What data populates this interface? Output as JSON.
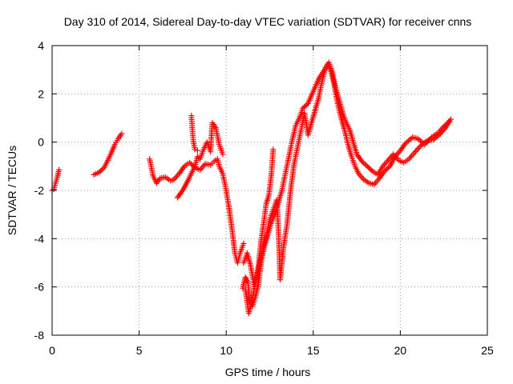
{
  "chart_data": {
    "type": "scatter",
    "title": "Day 310 of 2014, Sidereal Day-to-day VTEC variation (SDTVAR) for receiver cnns",
    "xlabel": "GPS time / hours",
    "ylabel": "SDTVAR / TECUs",
    "xlim": [
      0,
      25
    ],
    "ylim": [
      -8,
      4
    ],
    "xticks": [
      0,
      5,
      10,
      15,
      20,
      25
    ],
    "yticks": [
      -8,
      -6,
      -4,
      -2,
      0,
      2,
      4
    ],
    "xtick_labels": [
      "0",
      "5",
      "10",
      "15",
      "20",
      "25"
    ],
    "ytick_labels": [
      "-8",
      "-6",
      "-4",
      "-2",
      "0",
      "2",
      "4"
    ],
    "grid": true,
    "marker": "+",
    "color": "#ff0000",
    "series": [
      {
        "points": [
          [
            0.0,
            -2.0
          ],
          [
            0.1,
            -1.95
          ],
          [
            0.2,
            -1.7
          ],
          [
            0.3,
            -1.45
          ],
          [
            0.4,
            -1.15
          ]
        ]
      },
      {
        "points": [
          [
            2.4,
            -1.35
          ],
          [
            2.7,
            -1.25
          ],
          [
            3.0,
            -1.05
          ],
          [
            3.2,
            -0.75
          ],
          [
            3.4,
            -0.45
          ],
          [
            3.6,
            -0.1
          ],
          [
            3.8,
            0.15
          ],
          [
            4.0,
            0.35
          ]
        ]
      },
      {
        "points": [
          [
            5.6,
            -0.7
          ],
          [
            5.8,
            -1.4
          ],
          [
            6.0,
            -1.7
          ],
          [
            6.2,
            -1.5
          ],
          [
            6.5,
            -1.45
          ],
          [
            6.8,
            -1.6
          ],
          [
            7.0,
            -1.55
          ],
          [
            7.3,
            -1.3
          ],
          [
            7.6,
            -1.0
          ],
          [
            7.9,
            -0.85
          ],
          [
            8.2,
            -1.05
          ],
          [
            8.5,
            -1.15
          ],
          [
            8.8,
            -0.9
          ],
          [
            9.1,
            -0.95
          ],
          [
            9.3,
            -0.8
          ],
          [
            9.5,
            -0.7
          ],
          [
            9.6,
            -1.0
          ],
          [
            9.8,
            -1.3
          ],
          [
            10.0,
            -2.0
          ],
          [
            10.2,
            -2.9
          ],
          [
            10.35,
            -3.7
          ],
          [
            10.5,
            -4.6
          ],
          [
            10.65,
            -5.0
          ],
          [
            10.8,
            -4.6
          ],
          [
            11.0,
            -4.2
          ]
        ]
      },
      {
        "points": [
          [
            7.2,
            -2.3
          ],
          [
            7.5,
            -2.0
          ],
          [
            7.8,
            -1.6
          ],
          [
            8.0,
            -1.3
          ],
          [
            8.2,
            -1.0
          ],
          [
            8.35,
            -0.6
          ],
          [
            8.5,
            -0.7
          ],
          [
            8.7,
            -0.3
          ],
          [
            8.9,
            0.0
          ],
          [
            9.1,
            -0.4
          ],
          [
            9.2,
            0.8
          ],
          [
            9.4,
            0.6
          ],
          [
            9.6,
            -0.1
          ],
          [
            9.8,
            -0.5
          ]
        ]
      },
      {
        "points": [
          [
            8.0,
            1.1
          ],
          [
            8.05,
            0.6
          ],
          [
            8.1,
            0.1
          ],
          [
            8.2,
            -0.3
          ],
          [
            8.35,
            -0.35
          ]
        ]
      },
      {
        "points": [
          [
            10.95,
            -6.05
          ],
          [
            11.1,
            -5.6
          ],
          [
            11.25,
            -5.8
          ],
          [
            11.35,
            -6.6
          ],
          [
            11.5,
            -6.8
          ],
          [
            11.7,
            -6.35
          ],
          [
            11.85,
            -5.9
          ],
          [
            12.0,
            -5.0
          ],
          [
            12.2,
            -4.3
          ],
          [
            12.4,
            -3.8
          ],
          [
            12.6,
            -3.3
          ],
          [
            12.8,
            -3.0
          ],
          [
            13.0,
            -2.5
          ],
          [
            13.2,
            -2.0
          ],
          [
            13.4,
            -1.3
          ],
          [
            13.6,
            -0.6
          ],
          [
            13.8,
            0.1
          ],
          [
            14.0,
            0.7
          ],
          [
            14.2,
            1.0
          ],
          [
            14.4,
            1.4
          ],
          [
            14.7,
            1.6
          ],
          [
            15.0,
            2.1
          ],
          [
            15.3,
            2.6
          ],
          [
            15.6,
            2.95
          ],
          [
            15.85,
            3.15
          ],
          [
            16.0,
            3.0
          ],
          [
            16.2,
            2.4
          ],
          [
            16.4,
            1.6
          ],
          [
            16.6,
            1.0
          ],
          [
            16.8,
            0.5
          ],
          [
            17.0,
            -0.1
          ],
          [
            17.2,
            -0.6
          ],
          [
            17.4,
            -1.0
          ],
          [
            17.6,
            -1.3
          ],
          [
            17.9,
            -1.55
          ],
          [
            18.2,
            -1.7
          ],
          [
            18.5,
            -1.75
          ],
          [
            18.8,
            -1.5
          ],
          [
            19.1,
            -1.2
          ],
          [
            19.4,
            -1.0
          ],
          [
            19.7,
            -0.6
          ],
          [
            20.0,
            -0.35
          ],
          [
            20.3,
            -0.05
          ],
          [
            20.7,
            0.2
          ],
          [
            21.0,
            0.15
          ],
          [
            21.4,
            -0.1
          ],
          [
            21.8,
            0.2
          ],
          [
            22.2,
            0.4
          ],
          [
            22.5,
            0.65
          ],
          [
            22.8,
            0.85
          ]
        ]
      },
      {
        "points": [
          [
            11.0,
            -5.0
          ],
          [
            11.2,
            -4.6
          ],
          [
            11.4,
            -5.1
          ],
          [
            11.6,
            -5.9
          ],
          [
            11.8,
            -5.5
          ],
          [
            12.0,
            -4.1
          ],
          [
            12.2,
            -3.1
          ],
          [
            12.3,
            -2.55
          ],
          [
            12.45,
            -2.2
          ],
          [
            12.6,
            -1.3
          ],
          [
            12.7,
            -0.3
          ]
        ]
      },
      {
        "points": [
          [
            11.1,
            -6.1
          ],
          [
            11.3,
            -7.1
          ],
          [
            11.5,
            -6.5
          ],
          [
            11.7,
            -5.7
          ],
          [
            11.9,
            -5.1
          ],
          [
            12.1,
            -4.4
          ],
          [
            12.3,
            -3.9
          ],
          [
            12.5,
            -3.2
          ],
          [
            12.7,
            -2.8
          ],
          [
            12.9,
            -2.4
          ],
          [
            13.0,
            -3.6
          ],
          [
            13.1,
            -5.7
          ],
          [
            13.3,
            -4.3
          ],
          [
            13.5,
            -3.4
          ],
          [
            13.7,
            -2.0
          ],
          [
            13.9,
            -0.9
          ],
          [
            14.1,
            -0.2
          ],
          [
            14.3,
            0.5
          ],
          [
            14.5,
            1.2
          ],
          [
            14.7,
            0.3
          ],
          [
            14.9,
            0.8
          ],
          [
            15.1,
            1.3
          ],
          [
            15.3,
            1.8
          ],
          [
            15.5,
            2.5
          ],
          [
            15.7,
            3.1
          ],
          [
            15.9,
            3.3
          ],
          [
            16.1,
            2.9
          ],
          [
            16.3,
            2.2
          ],
          [
            16.5,
            1.7
          ],
          [
            16.7,
            1.2
          ],
          [
            16.9,
            0.8
          ],
          [
            17.1,
            0.5
          ],
          [
            17.3,
            0.0
          ],
          [
            17.5,
            -0.5
          ],
          [
            17.8,
            -0.8
          ],
          [
            18.1,
            -1.0
          ],
          [
            18.4,
            -1.2
          ],
          [
            18.7,
            -1.35
          ],
          [
            19.0,
            -1.0
          ],
          [
            19.3,
            -0.75
          ],
          [
            19.6,
            -0.5
          ],
          [
            19.9,
            -0.75
          ],
          [
            20.2,
            -0.85
          ],
          [
            20.5,
            -0.7
          ],
          [
            20.8,
            -0.45
          ],
          [
            21.1,
            -0.2
          ],
          [
            21.5,
            0.05
          ],
          [
            21.9,
            0.1
          ],
          [
            22.3,
            0.35
          ],
          [
            22.6,
            0.6
          ],
          [
            22.9,
            0.95
          ]
        ]
      }
    ]
  }
}
